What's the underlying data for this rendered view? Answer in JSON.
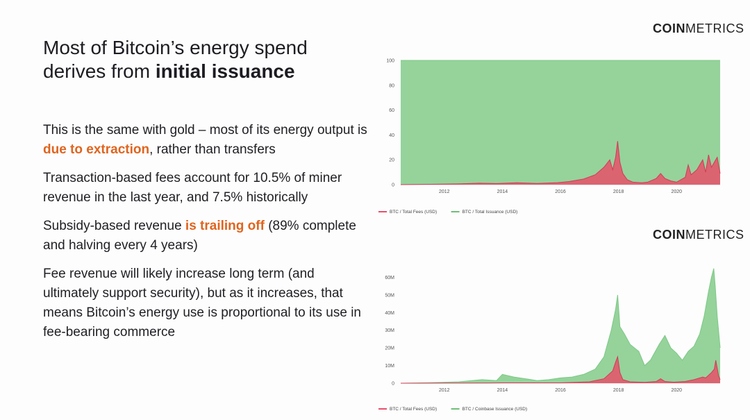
{
  "title": {
    "line1": "Most of Bitcoin’s energy spend",
    "line2_prefix": "derives from ",
    "line2_bold": "initial issuance"
  },
  "bullets": [
    {
      "text1": "This is the same with gold – most of its energy output is ",
      "highlight": "due to extraction",
      "text2": ", rather than transfers"
    },
    {
      "text1": "Transaction-based fees account for 10.5% of miner revenue in the last year, and 7.5% historically",
      "highlight": "",
      "text2": ""
    },
    {
      "text1": "Subsidy-based revenue ",
      "highlight": "is trailing off",
      "text2": "  (89% complete and halving every 4 years)"
    },
    {
      "text1": "Fee revenue will likely increase long term (and ultimately support security), but as it increases, that means Bitcoin’s energy use is proportional to its use in fee-bearing commerce",
      "highlight": "",
      "text2": ""
    }
  ],
  "logo": {
    "coin": "COIN",
    "metrics": "METRICS"
  },
  "colors": {
    "fees": "#e8506a",
    "issuance": "#8fd196",
    "issuance_top": "#7cc885",
    "highlight": "#e0641e"
  },
  "chart_data": [
    {
      "type": "area",
      "title": "",
      "xlabel": "",
      "ylabel": "",
      "xlim": [
        2010.5,
        2021.5
      ],
      "ylim": [
        0,
        100
      ],
      "x_ticks": [
        "2012",
        "2014",
        "2016",
        "2018",
        "2020"
      ],
      "y_ticks": [
        "0",
        "20",
        "40",
        "60",
        "80",
        "100"
      ],
      "legend_position": "bottom-left",
      "series": [
        {
          "name": "BTC / Total Fees (USD)",
          "x": [
            2010.5,
            2011.5,
            2012.5,
            2013.2,
            2013.8,
            2014.5,
            2015.2,
            2015.9,
            2016.3,
            2016.8,
            2017.2,
            2017.5,
            2017.7,
            2017.8,
            2017.9,
            2017.97,
            2018.05,
            2018.15,
            2018.3,
            2018.5,
            2018.8,
            2019.0,
            2019.3,
            2019.45,
            2019.6,
            2019.8,
            2020.0,
            2020.3,
            2020.4,
            2020.5,
            2020.7,
            2020.9,
            2021.0,
            2021.1,
            2021.2,
            2021.3,
            2021.4,
            2021.5
          ],
          "values": [
            0,
            0.3,
            0.6,
            1.2,
            0.9,
            1.5,
            1.0,
            1.6,
            2.5,
            4.5,
            8.0,
            14.0,
            20.0,
            12.0,
            22.0,
            35.0,
            18.0,
            9.0,
            4.0,
            2.0,
            1.5,
            2.0,
            5.0,
            9.0,
            5.0,
            3.0,
            2.0,
            6.0,
            16.0,
            8.0,
            12.0,
            20.0,
            10.0,
            24.0,
            14.0,
            18.0,
            22.0,
            9.0
          ]
        },
        {
          "name": "BTC / Total Issuance (USD)",
          "x": [
            2010.5,
            2021.5
          ],
          "values": [
            100,
            100
          ]
        }
      ]
    },
    {
      "type": "area",
      "title": "",
      "xlabel": "",
      "ylabel": "",
      "xlim": [
        2010.5,
        2021.5
      ],
      "ylim": [
        0,
        70
      ],
      "y_unit": "M",
      "x_ticks": [
        "2012",
        "2014",
        "2016",
        "2018",
        "2020"
      ],
      "y_ticks": [
        "0",
        "10M",
        "20M",
        "30M",
        "40M",
        "50M",
        "60M"
      ],
      "legend_position": "bottom-left",
      "series": [
        {
          "name": "BTC / Coinbase Issuance (USD)",
          "x": [
            2010.5,
            2011.5,
            2012.5,
            2013.3,
            2013.8,
            2014.0,
            2014.4,
            2014.8,
            2015.2,
            2015.6,
            2016.0,
            2016.4,
            2016.8,
            2017.2,
            2017.5,
            2017.75,
            2017.9,
            2017.97,
            2018.05,
            2018.2,
            2018.4,
            2018.7,
            2018.9,
            2019.1,
            2019.4,
            2019.6,
            2019.8,
            2020.0,
            2020.2,
            2020.4,
            2020.6,
            2020.8,
            2020.95,
            2021.1,
            2021.2,
            2021.28,
            2021.33,
            2021.4,
            2021.5
          ],
          "values": [
            0,
            0.3,
            0.8,
            2.0,
            1.5,
            5.0,
            3.5,
            2.5,
            1.5,
            2.0,
            3.0,
            3.5,
            5.0,
            8.0,
            15.0,
            30.0,
            42.0,
            50.0,
            32.0,
            28.0,
            22.0,
            18.0,
            10.0,
            13.0,
            22.0,
            27.0,
            20.0,
            17.0,
            13.0,
            18.0,
            21.0,
            28.0,
            38.0,
            52.0,
            60.0,
            65.0,
            55.0,
            38.0,
            20.0
          ]
        },
        {
          "name": "BTC / Total Fees (USD)",
          "x": [
            2010.5,
            2013.5,
            2014.0,
            2016.0,
            2017.0,
            2017.5,
            2017.8,
            2017.9,
            2017.97,
            2018.05,
            2018.15,
            2018.4,
            2018.9,
            2019.3,
            2019.45,
            2019.6,
            2019.9,
            2020.3,
            2020.6,
            2020.9,
            2021.0,
            2021.2,
            2021.3,
            2021.35,
            2021.45,
            2021.5
          ],
          "values": [
            0,
            0.1,
            0.2,
            0.2,
            0.8,
            2.5,
            7.0,
            12.0,
            15.0,
            6.0,
            2.0,
            0.8,
            0.5,
            1.0,
            2.5,
            1.0,
            0.6,
            1.0,
            2.0,
            3.5,
            3.0,
            6.0,
            8.0,
            13.0,
            4.0,
            2.0
          ]
        }
      ]
    }
  ]
}
